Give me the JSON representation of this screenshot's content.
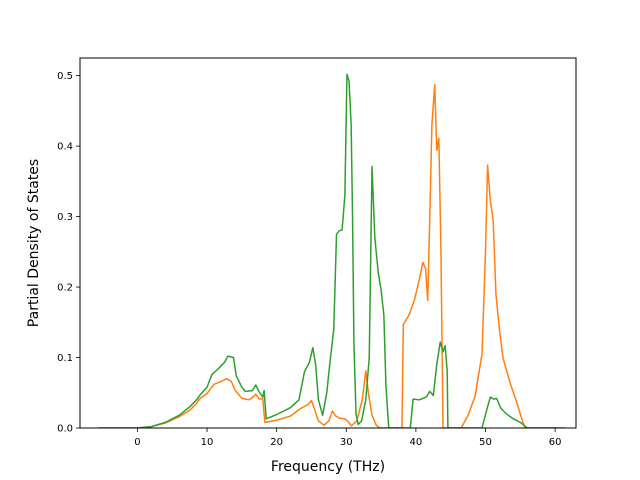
{
  "chart_data": {
    "type": "line",
    "title": "",
    "xlabel": "Frequency (THz)",
    "ylabel": "Partial Density of States",
    "xlim": [
      -8.25,
      63.0
    ],
    "ylim": [
      0,
      0.525
    ],
    "xticks": [
      0,
      10,
      20,
      30,
      40,
      50,
      60
    ],
    "yticks": [
      0.0,
      0.1,
      0.2,
      0.3,
      0.4,
      0.5
    ],
    "ytick_labels": [
      "0.0",
      "0.1",
      "0.2",
      "0.3",
      "0.4",
      "0.5"
    ],
    "grid": false,
    "series": [
      {
        "color": "#ff7f0e",
        "points": [
          [
            -5.5,
            0.0
          ],
          [
            0,
            0.0
          ],
          [
            2,
            0.002
          ],
          [
            4,
            0.007
          ],
          [
            6,
            0.016
          ],
          [
            7.5,
            0.025
          ],
          [
            8.5,
            0.035
          ],
          [
            9,
            0.042
          ],
          [
            10,
            0.049
          ],
          [
            11,
            0.062
          ],
          [
            12,
            0.066
          ],
          [
            12.8,
            0.07
          ],
          [
            13.5,
            0.066
          ],
          [
            14,
            0.054
          ],
          [
            15,
            0.042
          ],
          [
            16,
            0.04
          ],
          [
            16.5,
            0.043
          ],
          [
            17,
            0.048
          ],
          [
            17.5,
            0.041
          ],
          [
            18,
            0.042
          ],
          [
            18.3,
            0.008
          ],
          [
            20,
            0.011
          ],
          [
            22,
            0.017
          ],
          [
            23.5,
            0.028
          ],
          [
            24.5,
            0.033
          ],
          [
            25,
            0.039
          ],
          [
            25.5,
            0.025
          ],
          [
            26,
            0.01
          ],
          [
            26.8,
            0.004
          ],
          [
            27.5,
            0.01
          ],
          [
            28,
            0.024
          ],
          [
            28.5,
            0.017
          ],
          [
            29,
            0.014
          ],
          [
            29.8,
            0.013
          ],
          [
            30.3,
            0.009
          ],
          [
            30.7,
            0.003
          ],
          [
            31.5,
            0.01
          ],
          [
            32.3,
            0.04
          ],
          [
            32.8,
            0.081
          ],
          [
            33.2,
            0.048
          ],
          [
            33.7,
            0.018
          ],
          [
            34.3,
            0.004
          ],
          [
            34.8,
            0.0
          ],
          [
            38,
            0.0
          ],
          [
            38.2,
            0.147
          ],
          [
            39,
            0.16
          ],
          [
            39.8,
            0.182
          ],
          [
            40.5,
            0.211
          ],
          [
            41,
            0.235
          ],
          [
            41.4,
            0.226
          ],
          [
            41.7,
            0.181
          ],
          [
            42,
            0.3
          ],
          [
            42.3,
            0.43
          ],
          [
            42.7,
            0.487
          ],
          [
            43,
            0.394
          ],
          [
            43.3,
            0.411
          ],
          [
            43.6,
            0.25
          ],
          [
            43.9,
            0.0
          ],
          [
            46.5,
            0.0
          ],
          [
            47.5,
            0.018
          ],
          [
            48.5,
            0.045
          ],
          [
            49.5,
            0.105
          ],
          [
            50,
            0.25
          ],
          [
            50.3,
            0.373
          ],
          [
            50.7,
            0.322
          ],
          [
            51.1,
            0.295
          ],
          [
            51.5,
            0.19
          ],
          [
            52,
            0.14
          ],
          [
            52.5,
            0.1
          ],
          [
            53.5,
            0.065
          ],
          [
            54.5,
            0.036
          ],
          [
            55.3,
            0.01
          ],
          [
            55.7,
            0.0
          ],
          [
            60,
            0.0
          ]
        ]
      },
      {
        "color": "#2ca02c",
        "points": [
          [
            -5.5,
            0.0
          ],
          [
            0,
            0.0
          ],
          [
            2,
            0.002
          ],
          [
            4,
            0.008
          ],
          [
            6,
            0.018
          ],
          [
            7.5,
            0.03
          ],
          [
            8.5,
            0.04
          ],
          [
            9,
            0.047
          ],
          [
            10,
            0.058
          ],
          [
            10.7,
            0.076
          ],
          [
            11.5,
            0.083
          ],
          [
            12.5,
            0.093
          ],
          [
            13,
            0.102
          ],
          [
            13.8,
            0.1
          ],
          [
            14.2,
            0.074
          ],
          [
            15,
            0.058
          ],
          [
            15.5,
            0.052
          ],
          [
            16.5,
            0.053
          ],
          [
            17,
            0.061
          ],
          [
            17.5,
            0.051
          ],
          [
            18,
            0.044
          ],
          [
            18.2,
            0.053
          ],
          [
            18.5,
            0.013
          ],
          [
            20,
            0.019
          ],
          [
            22,
            0.029
          ],
          [
            23.2,
            0.04
          ],
          [
            23.5,
            0.055
          ],
          [
            24,
            0.08
          ],
          [
            24.7,
            0.093
          ],
          [
            25.2,
            0.114
          ],
          [
            25.6,
            0.09
          ],
          [
            26,
            0.04
          ],
          [
            26.6,
            0.018
          ],
          [
            27.2,
            0.05
          ],
          [
            27.6,
            0.088
          ],
          [
            28.2,
            0.14
          ],
          [
            28.6,
            0.275
          ],
          [
            29,
            0.28
          ],
          [
            29.4,
            0.281
          ],
          [
            29.8,
            0.33
          ],
          [
            30.1,
            0.502
          ],
          [
            30.4,
            0.492
          ],
          [
            30.7,
            0.43
          ],
          [
            30.9,
            0.3
          ],
          [
            31.1,
            0.12
          ],
          [
            31.4,
            0.02
          ],
          [
            31.7,
            0.005
          ],
          [
            32.2,
            0.01
          ],
          [
            32.8,
            0.04
          ],
          [
            33.3,
            0.1
          ],
          [
            33.7,
            0.371
          ],
          [
            34.1,
            0.27
          ],
          [
            34.6,
            0.22
          ],
          [
            35,
            0.196
          ],
          [
            35.4,
            0.16
          ],
          [
            35.7,
            0.06
          ],
          [
            36.1,
            0.0
          ],
          [
            39.2,
            0.0
          ],
          [
            39.6,
            0.041
          ],
          [
            40.5,
            0.04
          ],
          [
            41.5,
            0.044
          ],
          [
            42,
            0.052
          ],
          [
            42.5,
            0.046
          ],
          [
            43,
            0.09
          ],
          [
            43.5,
            0.122
          ],
          [
            43.9,
            0.108
          ],
          [
            44.2,
            0.117
          ],
          [
            44.5,
            0.08
          ],
          [
            44.6,
            0.0
          ],
          [
            49.5,
            0.0
          ],
          [
            50.3,
            0.03
          ],
          [
            50.7,
            0.044
          ],
          [
            51.2,
            0.041
          ],
          [
            51.6,
            0.042
          ],
          [
            52.2,
            0.028
          ],
          [
            53,
            0.02
          ],
          [
            54,
            0.013
          ],
          [
            55,
            0.008
          ],
          [
            55.5,
            0.004
          ],
          [
            56,
            0.0
          ],
          [
            61.5,
            0.0
          ]
        ]
      }
    ]
  }
}
